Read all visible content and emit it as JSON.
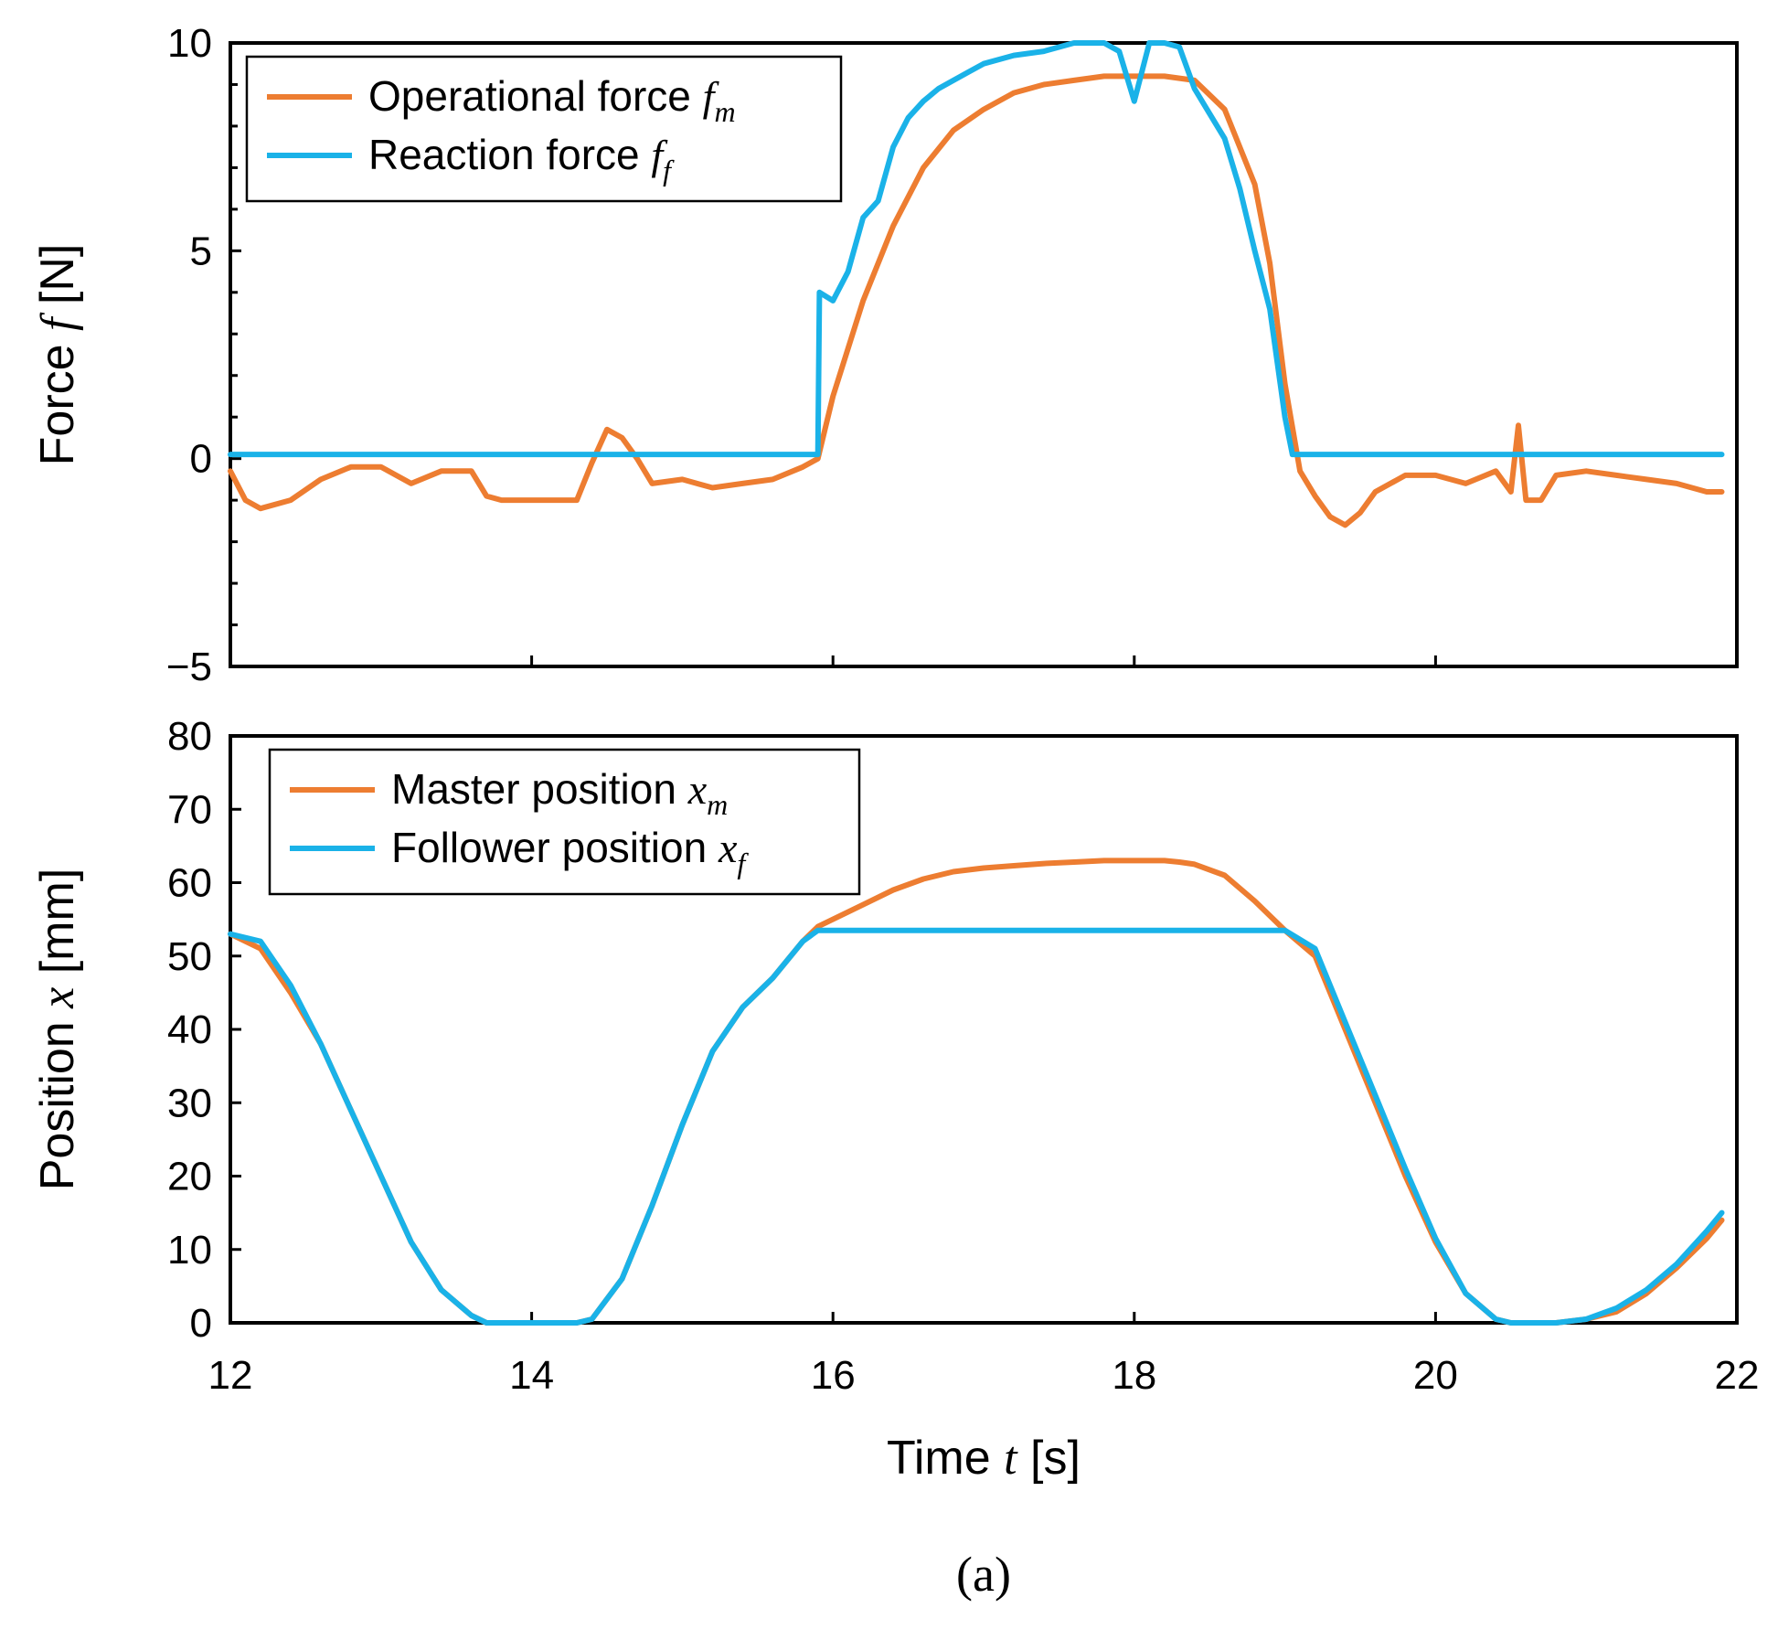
{
  "chart_data": [
    {
      "type": "line",
      "panel": "top",
      "ylabel": "Force",
      "ylabel_var": "f",
      "ylabel_unit": "[N]",
      "xlim": [
        12,
        22
      ],
      "ylim": [
        -5,
        10
      ],
      "yticks": [
        "−5",
        "0",
        "5",
        "10"
      ],
      "grid": false,
      "legend_position": "top-left",
      "series": [
        {
          "name": "Operational force",
          "var": "f",
          "sub": "m",
          "color": "#ED7D31",
          "x": [
            12.0,
            12.1,
            12.2,
            12.4,
            12.6,
            12.8,
            13.0,
            13.2,
            13.4,
            13.6,
            13.7,
            13.8,
            14.0,
            14.2,
            14.3,
            14.4,
            14.5,
            14.6,
            14.7,
            14.8,
            15.0,
            15.2,
            15.4,
            15.6,
            15.8,
            15.9,
            16.0,
            16.2,
            16.4,
            16.6,
            16.8,
            17.0,
            17.2,
            17.4,
            17.6,
            17.8,
            18.0,
            18.2,
            18.4,
            18.6,
            18.8,
            18.9,
            19.0,
            19.1,
            19.2,
            19.3,
            19.4,
            19.5,
            19.6,
            19.8,
            20.0,
            20.2,
            20.4,
            20.5,
            20.55,
            20.6,
            20.7,
            20.8,
            21.0,
            21.2,
            21.4,
            21.6,
            21.8,
            21.9
          ],
          "y": [
            -0.3,
            -1.0,
            -1.2,
            -1.0,
            -0.5,
            -0.2,
            -0.2,
            -0.6,
            -0.3,
            -0.3,
            -0.9,
            -1.0,
            -1.0,
            -1.0,
            -1.0,
            -0.1,
            0.7,
            0.5,
            0.0,
            -0.6,
            -0.5,
            -0.7,
            -0.6,
            -0.5,
            -0.2,
            0.0,
            1.5,
            3.8,
            5.6,
            7.0,
            7.9,
            8.4,
            8.8,
            9.0,
            9.1,
            9.2,
            9.2,
            9.2,
            9.1,
            8.4,
            6.6,
            4.7,
            1.8,
            -0.3,
            -0.9,
            -1.4,
            -1.6,
            -1.3,
            -0.8,
            -0.4,
            -0.4,
            -0.6,
            -0.3,
            -0.8,
            0.8,
            -1.0,
            -1.0,
            -0.4,
            -0.3,
            -0.4,
            -0.5,
            -0.6,
            -0.8,
            -0.8
          ]
        },
        {
          "name": "Reaction force",
          "var": "f",
          "sub": "f",
          "color": "#1AB2E8",
          "x": [
            12.0,
            13.0,
            14.0,
            15.0,
            15.9,
            15.91,
            16.0,
            16.1,
            16.2,
            16.3,
            16.4,
            16.5,
            16.6,
            16.7,
            16.8,
            16.9,
            17.0,
            17.2,
            17.4,
            17.6,
            17.8,
            17.9,
            18.0,
            18.1,
            18.2,
            18.3,
            18.4,
            18.5,
            18.6,
            18.7,
            18.8,
            18.9,
            19.0,
            19.05,
            19.5,
            20.0,
            21.0,
            21.9
          ],
          "y": [
            0.1,
            0.1,
            0.1,
            0.1,
            0.1,
            4.0,
            3.8,
            4.5,
            5.8,
            6.2,
            7.5,
            8.2,
            8.6,
            8.9,
            9.1,
            9.3,
            9.5,
            9.7,
            9.8,
            10.0,
            10.0,
            9.8,
            8.6,
            10.0,
            10.0,
            9.9,
            8.9,
            8.3,
            7.7,
            6.5,
            5.0,
            3.6,
            1.0,
            0.1,
            0.1,
            0.1,
            0.1,
            0.1
          ]
        }
      ]
    },
    {
      "type": "line",
      "panel": "bottom",
      "ylabel": "Position",
      "ylabel_var": "x",
      "ylabel_unit": "[mm]",
      "xlabel": "Time",
      "xlabel_var": "t",
      "xlabel_unit": "[s]",
      "xlim": [
        12,
        22
      ],
      "ylim": [
        0,
        80
      ],
      "xticks": [
        "12",
        "14",
        "16",
        "18",
        "20",
        "22"
      ],
      "yticks": [
        "0",
        "10",
        "20",
        "30",
        "40",
        "50",
        "60",
        "70",
        "80"
      ],
      "grid": false,
      "legend_position": "top-left",
      "series": [
        {
          "name": "Master position",
          "var": "x",
          "sub": "m",
          "color": "#ED7D31",
          "x": [
            12.0,
            12.2,
            12.4,
            12.6,
            12.8,
            13.0,
            13.2,
            13.4,
            13.6,
            13.7,
            14.0,
            14.3,
            14.4,
            14.6,
            14.8,
            15.0,
            15.2,
            15.4,
            15.6,
            15.8,
            15.9,
            16.0,
            16.2,
            16.4,
            16.6,
            16.8,
            17.0,
            17.2,
            17.4,
            17.6,
            17.8,
            18.0,
            18.2,
            18.3,
            18.4,
            18.6,
            18.8,
            19.0,
            19.2,
            19.4,
            19.6,
            19.8,
            20.0,
            20.2,
            20.4,
            20.5,
            20.8,
            21.0,
            21.2,
            21.4,
            21.6,
            21.8,
            21.9
          ],
          "y": [
            53,
            51,
            45,
            38,
            29,
            20,
            11,
            4.5,
            1.0,
            0,
            0,
            0,
            0.5,
            6,
            16,
            27,
            37,
            43,
            47,
            52,
            54,
            55,
            57,
            59,
            60.5,
            61.5,
            62,
            62.3,
            62.6,
            62.8,
            63,
            63,
            63,
            62.8,
            62.5,
            61,
            57.5,
            53.5,
            50,
            40,
            30,
            20,
            11,
            4,
            0.5,
            0,
            0,
            0.5,
            1.5,
            4,
            7.5,
            11.5,
            14
          ]
        },
        {
          "name": "Follower position",
          "var": "x",
          "sub": "f",
          "color": "#1AB2E8",
          "x": [
            12.0,
            12.2,
            12.4,
            12.6,
            12.8,
            13.0,
            13.2,
            13.4,
            13.6,
            13.7,
            14.0,
            14.3,
            14.4,
            14.6,
            14.8,
            15.0,
            15.2,
            15.4,
            15.6,
            15.8,
            15.9,
            16.0,
            17.0,
            18.0,
            19.0,
            19.2,
            19.4,
            19.6,
            19.8,
            20.0,
            20.2,
            20.4,
            20.5,
            20.8,
            21.0,
            21.2,
            21.4,
            21.6,
            21.8,
            21.9
          ],
          "y": [
            53,
            52,
            46,
            38,
            29,
            20,
            11,
            4.5,
            1.0,
            0,
            0,
            0,
            0.5,
            6,
            16,
            27,
            37,
            43,
            47,
            52,
            53.5,
            53.5,
            53.5,
            53.5,
            53.5,
            51,
            41,
            31,
            21,
            11.5,
            4,
            0.5,
            0,
            0,
            0.5,
            2,
            4.5,
            8,
            12.5,
            15
          ]
        }
      ]
    }
  ],
  "caption": "(a)"
}
